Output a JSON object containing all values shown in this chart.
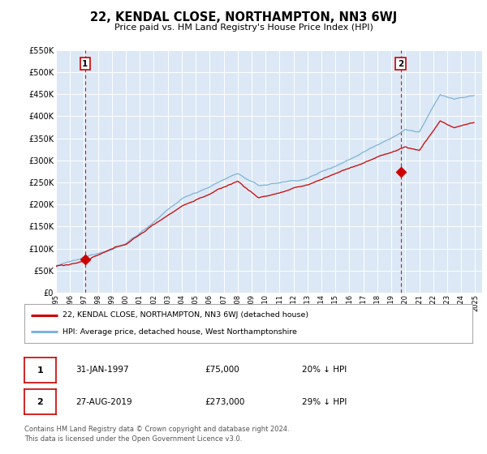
{
  "title": "22, KENDAL CLOSE, NORTHAMPTON, NN3 6WJ",
  "subtitle": "Price paid vs. HM Land Registry's House Price Index (HPI)",
  "sale1_price": 75000,
  "sale1_date_str": "31-JAN-1997",
  "sale1_pct": "20% ↓ HPI",
  "sale2_price": 273000,
  "sale2_date_str": "27-AUG-2019",
  "sale2_pct": "29% ↓ HPI",
  "legend_sale": "22, KENDAL CLOSE, NORTHAMPTON, NN3 6WJ (detached house)",
  "legend_hpi": "HPI: Average price, detached house, West Northamptonshire",
  "footer": "Contains HM Land Registry data © Crown copyright and database right 2024.\nThis data is licensed under the Open Government Licence v3.0.",
  "sale_color": "#cc0000",
  "hpi_color": "#7fb3d9",
  "dashed_color": "#cc0000",
  "background_color": "#dce8f5",
  "ylim": [
    0,
    550000
  ],
  "yticks": [
    0,
    50000,
    100000,
    150000,
    200000,
    250000,
    300000,
    350000,
    400000,
    450000,
    500000,
    550000
  ],
  "sale1_t": 1997.08,
  "sale2_t": 2019.67,
  "xlim_start": 1995.4,
  "xlim_end": 2025.5
}
